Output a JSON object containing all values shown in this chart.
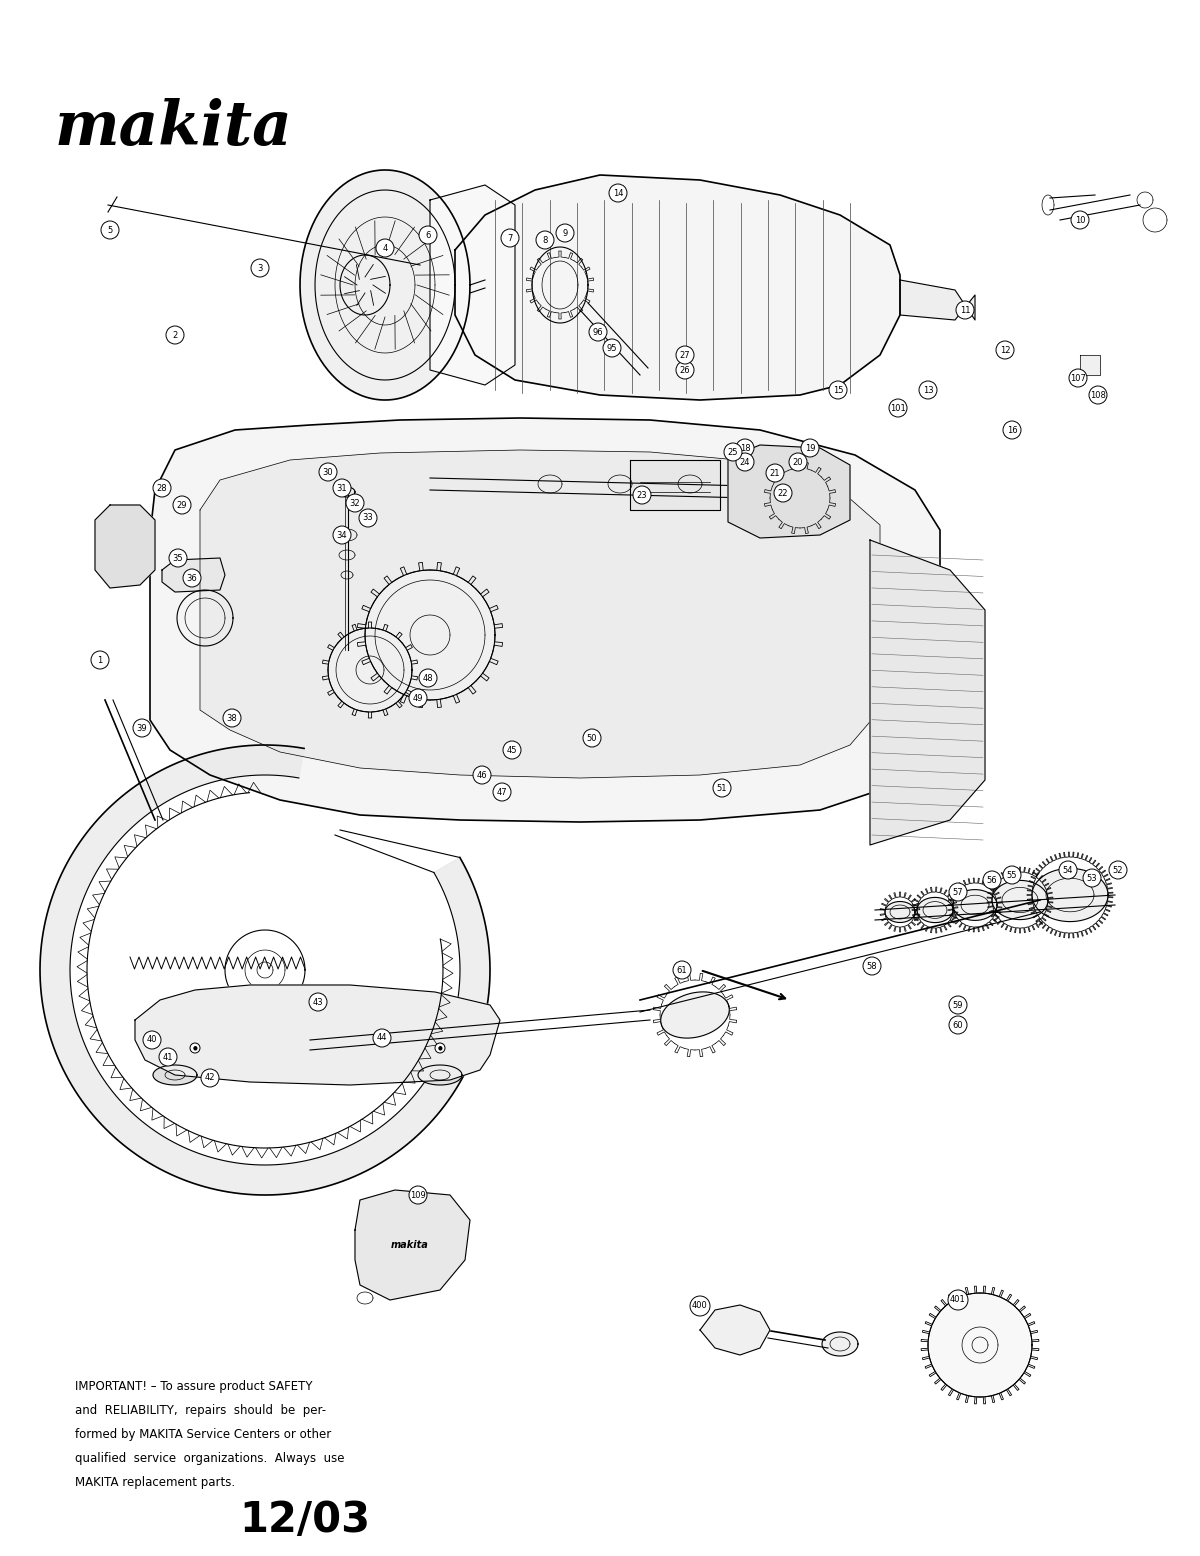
{
  "bg_color": "#ffffff",
  "title_text": "12/03",
  "logo_text": "makita",
  "important_text_line1": "IMPORTANT! – To assure product SAFETY",
  "important_text_line2": "and  RELIABILITY,  repairs  should  be  per-",
  "important_text_line3": "formed by MAKITA Service Centers or other",
  "important_text_line4": "qualified  service  organizations.  Always  use",
  "important_text_line5": "MAKITA replacement parts.",
  "fig_width": 12.0,
  "fig_height": 15.56,
  "dpi": 100
}
